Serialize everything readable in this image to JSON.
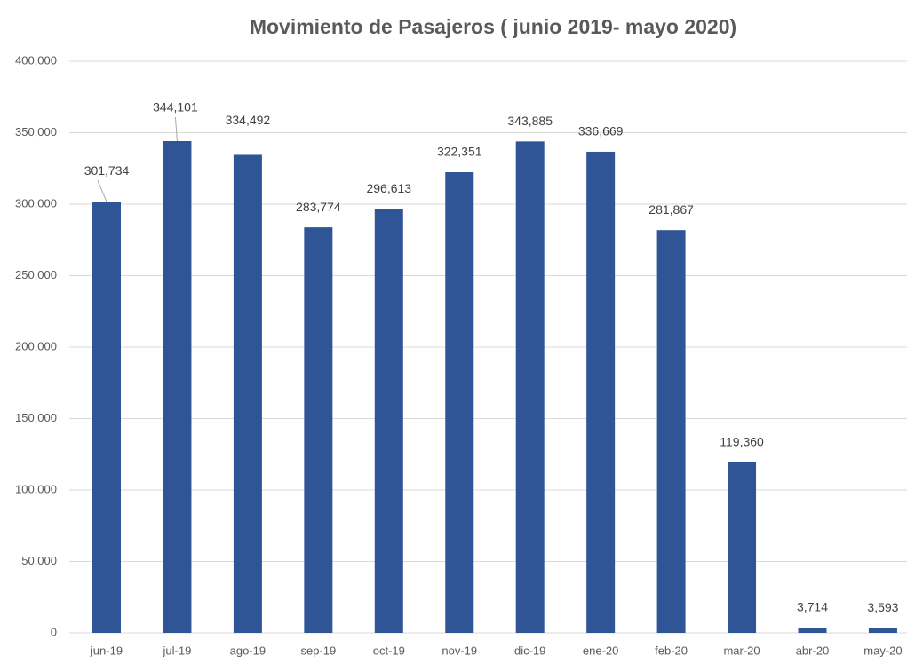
{
  "chart_data": {
    "type": "bar",
    "title": "Movimiento de Pasajeros ( junio 2019- mayo 2020)",
    "categories": [
      "jun-19",
      "jul-19",
      "ago-19",
      "sep-19",
      "oct-19",
      "nov-19",
      "dic-19",
      "ene-20",
      "feb-20",
      "mar-20",
      "abr-20",
      "may-20"
    ],
    "values": [
      301734,
      344101,
      334492,
      283774,
      296613,
      322351,
      343885,
      336669,
      281867,
      119360,
      3714,
      3593
    ],
    "value_labels": [
      "301,734",
      "344,101",
      "334,492",
      "283,774",
      "296,613",
      "322,351",
      "343,885",
      "336,669",
      "281,867",
      "119,360",
      "3,714",
      "3,593"
    ],
    "color": "#2f5597",
    "ylim": [
      0,
      400000
    ],
    "yticks": [
      0,
      {
        "value": 50000,
        "label": "50,000"
      },
      {
        "value": 100000,
        "label": "100,000"
      },
      {
        "value": 150000,
        "label": "150,000"
      },
      {
        "value": 200000,
        "label": "200,000"
      },
      {
        "value": 250000,
        "label": "250,000"
      },
      {
        "value": 300000,
        "label": "300,000"
      },
      {
        "value": 350000,
        "label": "350,000"
      },
      {
        "value": 400000,
        "label": "400,000"
      }
    ],
    "grid": true
  }
}
